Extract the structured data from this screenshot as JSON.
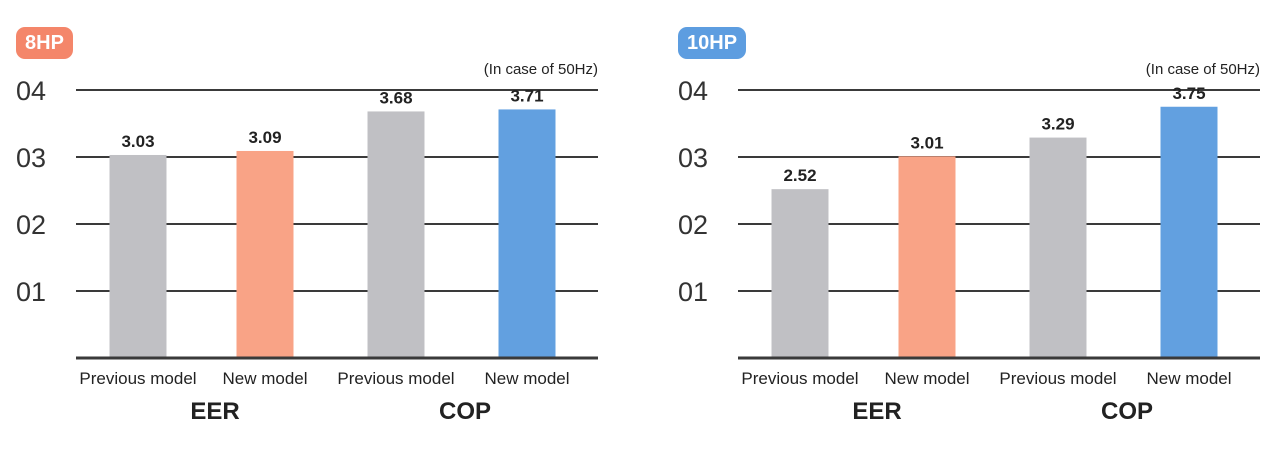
{
  "chart_data": [
    {
      "type": "bar",
      "badge": "8HP",
      "badge_color": "#f4866a",
      "note": "(In case of 50Hz)",
      "ytick_labels": [
        "01",
        "02",
        "03",
        "04"
      ],
      "ylim": [
        0,
        4
      ],
      "grid": true,
      "groups": [
        {
          "label": "EER",
          "bars": [
            {
              "category": "Previous model",
              "value": 3.03,
              "label": "3.03",
              "color": "#c0c0c4"
            },
            {
              "category": "New model",
              "value": 3.09,
              "label": "3.09",
              "color": "#f9a386"
            }
          ]
        },
        {
          "label": "COP",
          "bars": [
            {
              "category": "Previous model",
              "value": 3.68,
              "label": "3.68",
              "color": "#c0c0c4"
            },
            {
              "category": "New model",
              "value": 3.71,
              "label": "3.71",
              "color": "#62a0e0"
            }
          ]
        }
      ]
    },
    {
      "type": "bar",
      "badge": "10HP",
      "badge_color": "#5d9de0",
      "note": "(In case of 50Hz)",
      "ytick_labels": [
        "01",
        "02",
        "03",
        "04"
      ],
      "ylim": [
        0,
        4
      ],
      "grid": true,
      "groups": [
        {
          "label": "EER",
          "bars": [
            {
              "category": "Previous model",
              "value": 2.52,
              "label": "2.52",
              "color": "#c0c0c4"
            },
            {
              "category": "New model",
              "value": 3.01,
              "label": "3.01",
              "color": "#f9a386"
            }
          ]
        },
        {
          "label": "COP",
          "bars": [
            {
              "category": "Previous model",
              "value": 3.29,
              "label": "3.29",
              "color": "#c0c0c4"
            },
            {
              "category": "New model",
              "value": 3.75,
              "label": "3.75",
              "color": "#62a0e0"
            }
          ]
        }
      ]
    }
  ]
}
